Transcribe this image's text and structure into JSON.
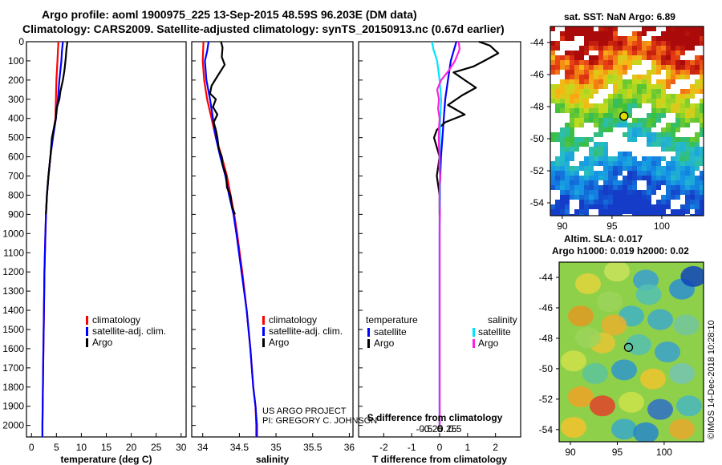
{
  "title_line1": "Argo profile: aoml 1900975_225 13-Sep-2015 48.59S 96.203E (DM data)",
  "title_line2": "Climatology: CARS2009. Satellite-adjusted climatology: synTS_20150913.nc (0.67d earlier)",
  "sst_title": "sat. SST: NaN Argo: 6.89",
  "sla_title1": "Altim. SLA: 0.017",
  "sla_title2": "Argo h1000: 0.019 h2000: 0.02",
  "credit_line1": "US ARGO PROJECT",
  "credit_line2": "PI: GREGORY C. JOHNSON",
  "watermark": "©IMOS 14-Dec-2018 10:28:10",
  "colors": {
    "climatology": "#ff0000",
    "satellite": "#0000ff",
    "argo": "#000000",
    "satellite_salinity": "#00e5ff",
    "argo_salinity": "#ff22dd"
  },
  "chart_data": [
    {
      "type": "line",
      "name": "temperature",
      "xlabel": "temperature (deg C)",
      "xlim": [
        -1,
        31
      ],
      "xticks": [
        "0",
        "5",
        "10",
        "15",
        "20",
        "25",
        "30"
      ],
      "xtick_values": [
        0,
        5,
        10,
        15,
        20,
        25,
        30
      ],
      "ylim": [
        0,
        2060
      ],
      "yticks": [
        "0",
        "100",
        "200",
        "300",
        "400",
        "500",
        "600",
        "700",
        "800",
        "900",
        "1000",
        "1100",
        "1200",
        "1300",
        "1400",
        "1500",
        "1600",
        "1700",
        "1800",
        "1900",
        "2000"
      ],
      "legend": [
        "climatology",
        "satellite-adj. clim.",
        "Argo"
      ],
      "series": [
        {
          "name": "climatology",
          "color": "#ff0000",
          "depth": [
            0,
            50,
            100,
            200,
            300,
            400,
            500,
            600,
            700,
            800,
            900,
            1000,
            1200,
            1400,
            1600,
            1800,
            2000,
            2060
          ],
          "values": [
            5.4,
            5.3,
            5.2,
            5.0,
            4.9,
            4.8,
            4.2,
            3.8,
            3.4,
            3.1,
            2.9,
            2.8,
            2.6,
            2.5,
            2.4,
            2.3,
            2.2,
            2.2
          ]
        },
        {
          "name": "satellite-adj. clim.",
          "color": "#0000ff",
          "depth": [
            0,
            50,
            100,
            200,
            300,
            400,
            500,
            600,
            700,
            800,
            900,
            1000,
            1200,
            1400,
            1600,
            1800,
            2000,
            2060
          ],
          "values": [
            6.3,
            6.1,
            6.0,
            5.6,
            5.3,
            4.9,
            4.3,
            3.8,
            3.4,
            3.1,
            2.9,
            2.8,
            2.6,
            2.5,
            2.4,
            2.3,
            2.2,
            2.2
          ]
        },
        {
          "name": "Argo",
          "color": "#000000",
          "depth": [
            0,
            40,
            80,
            150,
            200,
            260,
            300,
            350,
            400,
            450,
            500,
            600,
            700,
            800,
            900
          ],
          "values": [
            7.2,
            7.0,
            6.9,
            6.6,
            6.3,
            5.8,
            5.6,
            5.0,
            4.9,
            4.5,
            4.1,
            3.8,
            3.4,
            3.1,
            2.9
          ]
        }
      ]
    },
    {
      "type": "line",
      "name": "salinity",
      "xlabel": "salinity",
      "xlim": [
        33.85,
        36.05
      ],
      "xticks": [
        "34",
        "34.5",
        "35",
        "35.5",
        "36"
      ],
      "xtick_values": [
        34,
        34.5,
        35,
        35.5,
        36
      ],
      "ylim": [
        0,
        2060
      ],
      "legend": [
        "climatology",
        "satellite-adj. clim.",
        "Argo"
      ],
      "series": [
        {
          "name": "climatology",
          "color": "#ff0000",
          "depth": [
            0,
            100,
            200,
            300,
            400,
            500,
            600,
            700,
            800,
            900,
            1000,
            1200,
            1400,
            1600,
            1800,
            1900,
            2000,
            2060
          ],
          "values": [
            34.01,
            34.0,
            34.02,
            34.06,
            34.12,
            34.18,
            34.26,
            34.33,
            34.38,
            34.43,
            34.47,
            34.54,
            34.6,
            34.65,
            34.69,
            34.72,
            34.73,
            34.73
          ]
        },
        {
          "name": "satellite-adj. clim.",
          "color": "#0000ff",
          "depth": [
            0,
            50,
            100,
            200,
            300,
            400,
            500,
            600,
            700,
            800,
            900,
            1000,
            1200,
            1400,
            1600,
            1800,
            1900,
            2000,
            2060
          ],
          "values": [
            34.08,
            34.06,
            34.03,
            34.05,
            34.1,
            34.14,
            34.18,
            34.24,
            34.31,
            34.36,
            34.42,
            34.46,
            34.53,
            34.6,
            34.65,
            34.69,
            34.72,
            34.74,
            34.74
          ]
        },
        {
          "name": "Argo",
          "color": "#000000",
          "depth": [
            0,
            30,
            80,
            120,
            180,
            230,
            270,
            300,
            340,
            380,
            420,
            460,
            500,
            560,
            600,
            640,
            700,
            760,
            800,
            860,
            900
          ],
          "values": [
            34.25,
            34.27,
            34.26,
            34.3,
            34.2,
            34.12,
            34.1,
            34.18,
            34.14,
            34.2,
            34.15,
            34.18,
            34.2,
            34.22,
            34.26,
            34.27,
            34.32,
            34.33,
            34.38,
            34.4,
            34.44
          ]
        }
      ]
    },
    {
      "type": "line",
      "name": "difference",
      "xlabel": "T difference from climatology",
      "xlabel_top": "S difference from climatology",
      "xlim": [
        -2.9,
        2.9
      ],
      "xticks": [
        "-2",
        "-1",
        "0",
        "1",
        "2"
      ],
      "xtick_values": [
        -2,
        -1,
        0,
        1,
        2
      ],
      "sticks": [
        "-0.5",
        "-0.25",
        "0",
        "0.25",
        "0.5"
      ],
      "stick_values": [
        -0.5,
        -0.25,
        0,
        0.25,
        0.5
      ],
      "ylim": [
        0,
        2060
      ],
      "legend_temperature_title": "temperature",
      "legend_salinity_title": "salinity",
      "legend_temperature": [
        "satellite",
        "Argo"
      ],
      "legend_salinity": [
        "satellite",
        "Argo"
      ],
      "series": [
        {
          "name": "T satellite",
          "color": "#0000ff",
          "depth": [
            0,
            100,
            200,
            300,
            400,
            500,
            600,
            800,
            1000,
            1400,
            2000
          ],
          "values": [
            0.6,
            0.4,
            0.3,
            0.2,
            0.15,
            0.1,
            0.05,
            0.0,
            0.0,
            0.0,
            0.0
          ]
        },
        {
          "name": "T Argo",
          "color": "#000000",
          "depth": [
            0,
            20,
            60,
            100,
            130,
            160,
            200,
            240,
            280,
            330,
            380,
            420,
            460,
            500,
            600,
            700,
            800,
            900
          ],
          "values": [
            1.4,
            1.8,
            2.1,
            1.6,
            1.2,
            0.5,
            0.9,
            1.3,
            0.8,
            0.3,
            0.9,
            0.2,
            -0.1,
            -0.2,
            0.0,
            -0.1,
            0.0,
            0.0
          ]
        },
        {
          "name": "S satellite",
          "color": "#00e5ff",
          "depth": [
            0,
            40,
            100,
            200,
            300,
            400,
            600,
            800,
            1000,
            1200,
            1400,
            1600,
            1800,
            2000
          ],
          "values": [
            -0.25,
            -0.2,
            -0.08,
            0.0,
            0.05,
            0.02,
            0.0,
            0.02,
            0.0,
            0.0,
            0.0,
            0.0,
            0.0,
            0.0
          ]
        },
        {
          "name": "S Argo",
          "color": "#ff22dd",
          "depth": [
            0,
            40,
            100,
            150,
            200,
            250,
            300,
            350,
            400,
            450,
            500,
            550,
            600,
            650,
            700,
            750,
            800,
            850,
            900,
            950,
            1000,
            1500,
            2000
          ],
          "values": [
            0.62,
            0.65,
            0.5,
            0.3,
            0.05,
            -0.08,
            -0.02,
            -0.05,
            0.0,
            -0.02,
            -0.03,
            -0.02,
            0.0,
            -0.01,
            0.02,
            0.0,
            0.0,
            0.0,
            0.01,
            0.0,
            0.0,
            0.0,
            0.0
          ]
        }
      ]
    },
    {
      "type": "heatmap",
      "name": "sst_map",
      "title": "sat. SST: NaN Argo: 6.89",
      "xticks": [
        "90",
        "95",
        "100"
      ],
      "xtick_values": [
        90,
        95,
        100
      ],
      "yticks": [
        "-44",
        "-46",
        "-48",
        "-50",
        "-52",
        "-54"
      ],
      "ytick_values": [
        -44,
        -46,
        -48,
        -50,
        -52,
        -54
      ],
      "xlim": [
        88.8,
        104.2
      ],
      "ylim": [
        -54.8,
        -43.0
      ],
      "marker": [
        96.2,
        -48.6
      ]
    },
    {
      "type": "heatmap",
      "name": "sla_map",
      "title": "Altim. SLA: 0.017",
      "xticks": [
        "90",
        "95",
        "100"
      ],
      "xtick_values": [
        90,
        95,
        100
      ],
      "yticks": [
        "-44",
        "-46",
        "-48",
        "-50",
        "-52",
        "-54"
      ],
      "ytick_values": [
        -44,
        -46,
        -48,
        -50,
        -52,
        -54
      ],
      "xlim": [
        88.8,
        104.2
      ],
      "ylim": [
        -54.8,
        -43.0
      ],
      "marker": [
        96.2,
        -48.6
      ]
    }
  ]
}
